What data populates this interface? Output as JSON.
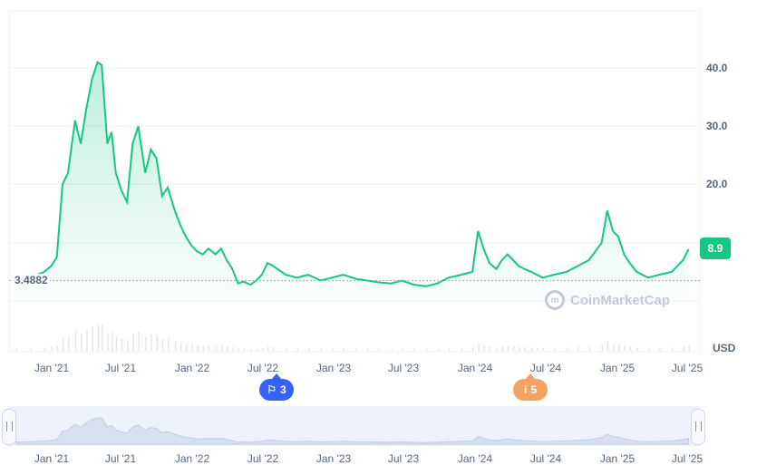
{
  "chart_data": {
    "type": "area",
    "currency": "USD",
    "y_ticks": [
      "40.0",
      "30.0",
      "20.0",
      "8.9"
    ],
    "ylim": [
      0,
      48
    ],
    "x_ticks": [
      "Jan '21",
      "Jul '21",
      "Jan '22",
      "Jul '22",
      "Jan '23",
      "Jul '23",
      "Jan '24",
      "Jul '24",
      "Jan '25",
      "Jul '25"
    ],
    "navigator_ticks": [
      "Jan '21",
      "Jul '21",
      "Jan '22",
      "Jul '22",
      "Jan '23",
      "Jul '23",
      "Jan '24",
      "Jul '24",
      "Jan '25",
      "Jul '25"
    ],
    "start_price": "3.4882",
    "current_price": "8.9",
    "line_color": "#16c784",
    "series": [
      {
        "x": [
          2020.75,
          2020.85,
          2020.95,
          2021.0,
          2021.04,
          2021.08,
          2021.12,
          2021.17,
          2021.21,
          2021.25,
          2021.29,
          2021.33,
          2021.36,
          2021.4,
          2021.43,
          2021.46,
          2021.5,
          2021.54,
          2021.58,
          2021.62,
          2021.67,
          2021.71,
          2021.75,
          2021.79,
          2021.83,
          2021.88,
          2021.92,
          2021.96,
          2022.0,
          2022.04,
          2022.08,
          2022.12,
          2022.17,
          2022.21,
          2022.25,
          2022.29,
          2022.33,
          2022.37,
          2022.42,
          2022.46,
          2022.5,
          2022.54,
          2022.58,
          2022.67,
          2022.75,
          2022.83,
          2022.92,
          2023.0,
          2023.08,
          2023.17,
          2023.25,
          2023.33,
          2023.42,
          2023.5,
          2023.58,
          2023.67,
          2023.75,
          2023.83,
          2023.92,
          2024.0,
          2024.04,
          2024.08,
          2024.12,
          2024.17,
          2024.21,
          2024.25,
          2024.29,
          2024.33,
          2024.37,
          2024.42,
          2024.46,
          2024.5,
          2024.58,
          2024.67,
          2024.75,
          2024.83,
          2024.92,
          2024.96,
          2025.0,
          2025.04,
          2025.08,
          2025.12,
          2025.17,
          2025.25,
          2025.33,
          2025.42,
          2025.5,
          2025.54
        ],
        "values": [
          3.5,
          4.0,
          5.0,
          6.0,
          7.5,
          20.0,
          22.0,
          31.0,
          27.0,
          33.0,
          38.0,
          41.0,
          40.5,
          27.0,
          29.0,
          22.0,
          19.0,
          17.0,
          27.0,
          30.0,
          22.0,
          26.0,
          24.5,
          18.0,
          19.5,
          15.5,
          13.0,
          11.0,
          9.5,
          8.5,
          8.0,
          9.0,
          8.0,
          9.0,
          7.0,
          5.5,
          3.0,
          3.3,
          2.8,
          3.5,
          4.5,
          6.5,
          6.0,
          4.5,
          4.0,
          4.5,
          3.5,
          4.0,
          4.5,
          3.8,
          3.5,
          3.2,
          3.0,
          3.5,
          2.8,
          2.5,
          3.0,
          4.0,
          4.5,
          5.0,
          12.0,
          9.0,
          6.5,
          5.5,
          7.0,
          8.0,
          7.0,
          6.0,
          5.5,
          5.0,
          4.5,
          4.0,
          4.5,
          5.0,
          6.0,
          7.0,
          10.0,
          15.5,
          12.0,
          11.0,
          8.0,
          6.5,
          5.0,
          4.0,
          4.5,
          5.0,
          7.0,
          8.9
        ]
      }
    ]
  },
  "navigator": {
    "left_handle": "left-range-handle",
    "right_handle": "right-range-handle"
  },
  "events": [
    {
      "icon": "flag-icon",
      "count": "3",
      "color": "#3861fb"
    },
    {
      "icon": "info-icon",
      "count": "5",
      "color": "#f4a261"
    }
  ],
  "watermark": "CoinMarketCap"
}
